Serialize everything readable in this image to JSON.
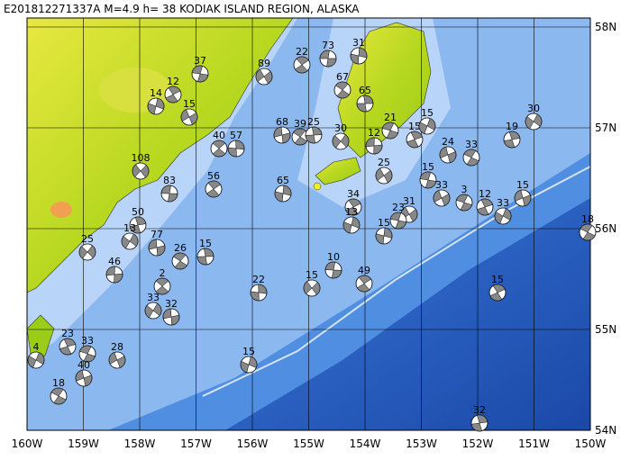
{
  "map": {
    "title": "E201812271337A M=4.9 h= 38 KODIAK ISLAND REGION, ALASKA",
    "lon_labels": [
      "160W",
      "159W",
      "158W",
      "157W",
      "156W",
      "155W",
      "154W",
      "153W",
      "152W",
      "151W",
      "150W"
    ],
    "lat_labels": [
      "58N",
      "57N",
      "56N",
      "55N",
      "54N"
    ],
    "event_depths": [
      73,
      22,
      31,
      89,
      37,
      12,
      14,
      15,
      21,
      15,
      15,
      24,
      33,
      19,
      30,
      68,
      39,
      25,
      30,
      12,
      40,
      57,
      108,
      83,
      56,
      65,
      25,
      15,
      34,
      13,
      33,
      3,
      12,
      33,
      15,
      18,
      50,
      13,
      77,
      26,
      15,
      25,
      46,
      2,
      22,
      15,
      10,
      49,
      15,
      31,
      23,
      15,
      15,
      28,
      33,
      23,
      4,
      40,
      18,
      32,
      33,
      32,
      67,
      65
    ]
  }
}
